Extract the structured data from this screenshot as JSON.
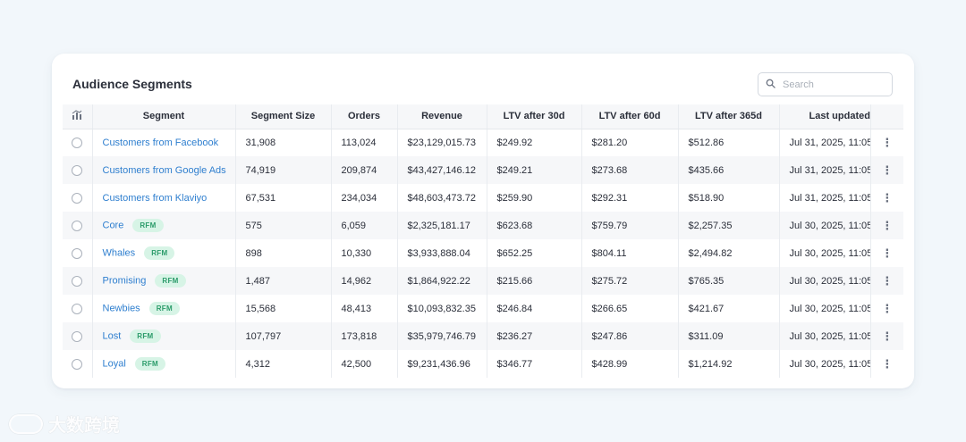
{
  "card": {
    "title": "Audience Segments",
    "search_placeholder": "Search"
  },
  "columns": [
    "Segment",
    "Segment Size",
    "Orders",
    "Revenue",
    "LTV after 30d",
    "LTV after 60d",
    "LTV after 365d",
    "Last updated"
  ],
  "rows": [
    {
      "segment": "Customers from Facebook",
      "badge": "",
      "size": "31,908",
      "orders": "113,024",
      "revenue": "$23,129,015.73",
      "ltv30": "$249.92",
      "ltv60": "$281.20",
      "ltv365": "$512.86",
      "updated": "Jul 31, 2025, 11:05"
    },
    {
      "segment": "Customers from Google Ads",
      "badge": "",
      "size": "74,919",
      "orders": "209,874",
      "revenue": "$43,427,146.12",
      "ltv30": "$249.21",
      "ltv60": "$273.68",
      "ltv365": "$435.66",
      "updated": "Jul 31, 2025, 11:05"
    },
    {
      "segment": "Customers from Klaviyo",
      "badge": "",
      "size": "67,531",
      "orders": "234,034",
      "revenue": "$48,603,473.72",
      "ltv30": "$259.90",
      "ltv60": "$292.31",
      "ltv365": "$518.90",
      "updated": "Jul 31, 2025, 11:05"
    },
    {
      "segment": "Core",
      "badge": "RFM",
      "size": "575",
      "orders": "6,059",
      "revenue": "$2,325,181.17",
      "ltv30": "$623.68",
      "ltv60": "$759.79",
      "ltv365": "$2,257.35",
      "updated": "Jul 30, 2025, 11:05"
    },
    {
      "segment": "Whales",
      "badge": "RFM",
      "size": "898",
      "orders": "10,330",
      "revenue": "$3,933,888.04",
      "ltv30": "$652.25",
      "ltv60": "$804.11",
      "ltv365": "$2,494.82",
      "updated": "Jul 30, 2025, 11:05"
    },
    {
      "segment": "Promising",
      "badge": "RFM",
      "size": "1,487",
      "orders": "14,962",
      "revenue": "$1,864,922.22",
      "ltv30": "$215.66",
      "ltv60": "$275.72",
      "ltv365": "$765.35",
      "updated": "Jul 30, 2025, 11:05"
    },
    {
      "segment": "Newbies",
      "badge": "RFM",
      "size": "15,568",
      "orders": "48,413",
      "revenue": "$10,093,832.35",
      "ltv30": "$246.84",
      "ltv60": "$266.65",
      "ltv365": "$421.67",
      "updated": "Jul 30, 2025, 11:05"
    },
    {
      "segment": "Lost",
      "badge": "RFM",
      "size": "107,797",
      "orders": "173,818",
      "revenue": "$35,979,746.79",
      "ltv30": "$236.27",
      "ltv60": "$247.86",
      "ltv365": "$311.09",
      "updated": "Jul 30, 2025, 11:05"
    },
    {
      "segment": "Loyal",
      "badge": "RFM",
      "size": "4,312",
      "orders": "42,500",
      "revenue": "$9,231,436.96",
      "ltv30": "$346.77",
      "ltv60": "$428.99",
      "ltv365": "$1,214.92",
      "updated": "Jul 30, 2025, 11:05"
    }
  ],
  "row_menu_glyph": "⋮",
  "watermark": {
    "text": "大数跨境"
  },
  "icons": {
    "header_icon": "bar-chart-icon",
    "search": "search-icon",
    "row_menu": "more-vertical-icon"
  },
  "colors": {
    "link": "#2f7fcf",
    "badge_bg": "#d7f4e6",
    "badge_text": "#2b9b6a",
    "page_bg": "#f2f7fb"
  }
}
